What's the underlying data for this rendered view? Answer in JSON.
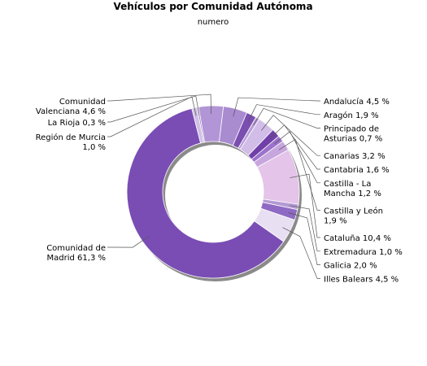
{
  "chart_data": {
    "type": "pie",
    "title": "Vehículos por Comunidad Autónoma",
    "subtitle": "numero",
    "slices": [
      {
        "name": "Andalucía",
        "value": 4.5,
        "color": "#a98bd0",
        "label_lines": [
          "Andalucía 4,5 %"
        ],
        "side": "right"
      },
      {
        "name": "Aragón",
        "value": 1.9,
        "color": "#7a4fb0",
        "label_lines": [
          "Aragón 1,9 %"
        ],
        "side": "right"
      },
      {
        "name": "Principado de Asturias",
        "value": 0.7,
        "color": "#b79ad8",
        "label_lines": [
          "Principado de",
          "Asturias 0,7 %"
        ],
        "side": "right"
      },
      {
        "name": "Canarias",
        "value": 3.2,
        "color": "#d2bde8",
        "label_lines": [
          "Canarias 3,2 %"
        ],
        "side": "right"
      },
      {
        "name": "Cantabria",
        "value": 1.6,
        "color": "#7040a8",
        "label_lines": [
          "Cantabria 1,6 %"
        ],
        "side": "right"
      },
      {
        "name": "Castilla - La Mancha",
        "value": 1.2,
        "color": "#9c72cc",
        "label_lines": [
          "Castilla - La",
          "Mancha 1,2 %"
        ],
        "side": "right"
      },
      {
        "name": "Castilla y León",
        "value": 1.9,
        "color": "#c7a6de",
        "label_lines": [
          "Castilla y León",
          "1,9 %"
        ],
        "side": "right"
      },
      {
        "name": "Cataluña",
        "value": 10.4,
        "color": "#e4c4e8",
        "label_lines": [
          "Cataluña 10,4 %"
        ],
        "side": "right"
      },
      {
        "name": "Extremadura",
        "value": 1.0,
        "color": "#b49ad4",
        "label_lines": [
          "Extremadura 1,0 %"
        ],
        "side": "right"
      },
      {
        "name": "Galicia",
        "value": 2.0,
        "color": "#8e6ac4",
        "label_lines": [
          "Galicia 2,0 %"
        ],
        "side": "right"
      },
      {
        "name": "Illes Balears",
        "value": 4.5,
        "color": "#e8dff2",
        "label_lines": [
          "Illes Balears 4,5 %"
        ],
        "side": "right"
      },
      {
        "name": "Comunidad de Madrid",
        "value": 61.3,
        "color": "#7a4db4",
        "label_lines": [
          "Comunidad de",
          "Madrid 61,3 %"
        ],
        "side": "left"
      },
      {
        "name": "Región de Murcia",
        "value": 1.0,
        "color": "#cfc0e4",
        "label_lines": [
          "Región de Murcia",
          "1,0 %"
        ],
        "side": "left"
      },
      {
        "name": "La Rioja",
        "value": 0.3,
        "color": "#9a7ac8",
        "label_lines": [
          "La Rioja 0,3 %"
        ],
        "side": "left"
      },
      {
        "name": "Comunidad Valenciana",
        "value": 4.6,
        "color": "#b295d6",
        "label_lines": [
          "Comunidad",
          "Valenciana 4,6 %"
        ],
        "side": "left"
      }
    ]
  }
}
